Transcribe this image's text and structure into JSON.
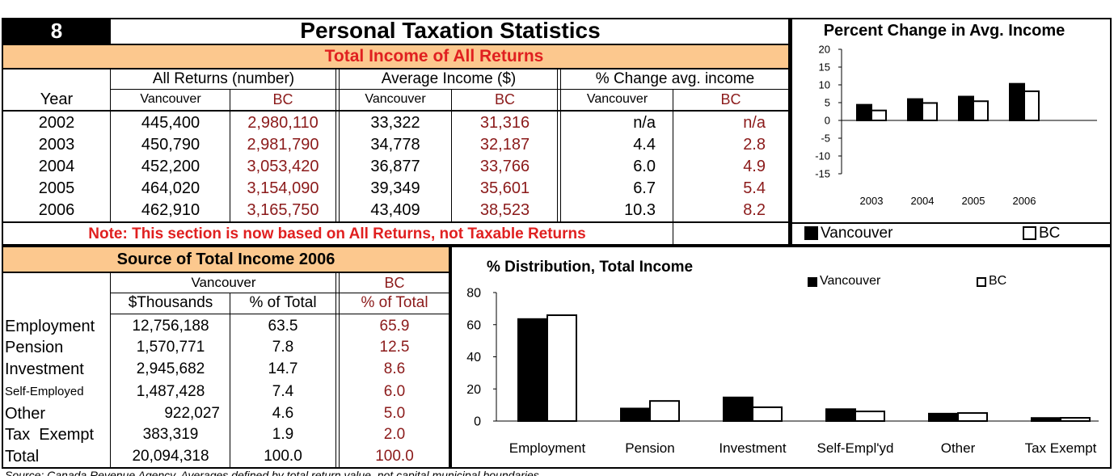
{
  "header": {
    "number": "8",
    "title": "Personal Taxation Statistics",
    "subtitle": "Total Income of All Returns"
  },
  "returns_table": {
    "year_label": "Year",
    "groups": [
      "All Returns (number)",
      "Average Income ($)",
      "% Change avg. income"
    ],
    "sub_labels": [
      "Vancouver",
      "BC"
    ],
    "rows": [
      {
        "year": "2002",
        "all_van": "445,400",
        "all_bc": "2,980,110",
        "avg_van": "33,322",
        "avg_bc": "31,316",
        "chg_van": "n/a",
        "chg_bc": "n/a"
      },
      {
        "year": "2003",
        "all_van": "450,790",
        "all_bc": "2,981,790",
        "avg_van": "34,778",
        "avg_bc": "32,187",
        "chg_van": "4.4",
        "chg_bc": "2.8"
      },
      {
        "year": "2004",
        "all_van": "452,200",
        "all_bc": "3,053,420",
        "avg_van": "36,877",
        "avg_bc": "33,766",
        "chg_van": "6.0",
        "chg_bc": "4.9"
      },
      {
        "year": "2005",
        "all_van": "464,020",
        "all_bc": "3,154,090",
        "avg_van": "39,349",
        "avg_bc": "35,601",
        "chg_van": "6.7",
        "chg_bc": "5.4"
      },
      {
        "year": "2006",
        "all_van": "462,910",
        "all_bc": "3,165,750",
        "avg_van": "43,409",
        "avg_bc": "38,523",
        "chg_van": "10.3",
        "chg_bc": "8.2"
      }
    ],
    "note": "Note: This section is now based on All Returns, not Taxable Returns"
  },
  "source_table": {
    "title": "Source of Total Income 2006",
    "van_label": "Vancouver",
    "bc_label": "BC",
    "col_thousands": "$Thousands",
    "col_pct": "% of Total",
    "col_bc_pct": "% of Total",
    "rows": [
      {
        "label": "Employment",
        "thousands": "12,756,188",
        "pct": "63.5",
        "bc": "65.9"
      },
      {
        "label": "Pension",
        "thousands": "1,570,771",
        "pct": "7.8",
        "bc": "12.5"
      },
      {
        "label": "Investment",
        "thousands": "2,945,682",
        "pct": "14.7",
        "bc": "8.6"
      },
      {
        "label": "Self-Employed",
        "thousands": "1,487,428",
        "pct": "7.4",
        "bc": "6.0"
      },
      {
        "label": "Other",
        "thousands": "922,027",
        "pct": "4.6",
        "bc": "5.0"
      },
      {
        "label": "Tax  Exempt",
        "thousands": "383,319",
        "pct": "1.9",
        "bc": "2.0"
      },
      {
        "label": "Total",
        "thousands": "20,094,318",
        "pct": "100.0",
        "bc": "100.0"
      }
    ]
  },
  "footer": {
    "source": "Source: Canada Revenue Agency.  Averages defined by total return value, not capital municipal boundaries."
  },
  "colors": {
    "bc_red": "#8b1a1a",
    "note_red": "#e02020",
    "header_orange": "#fcc88e",
    "black": "#000000"
  },
  "chart_data": [
    {
      "type": "bar",
      "title": "Percent Change in Avg. Income",
      "categories": [
        "2003",
        "2004",
        "2005",
        "2006"
      ],
      "series": [
        {
          "name": "Vancouver",
          "values": [
            4.4,
            6.0,
            6.7,
            10.3
          ],
          "color": "#000000"
        },
        {
          "name": "BC",
          "values": [
            2.8,
            4.9,
            5.4,
            8.2
          ],
          "color": "#ffffff"
        }
      ],
      "ylim": [
        -15,
        20
      ],
      "yticks": [
        "20",
        "15",
        "10",
        "5",
        "0",
        "-5",
        "-10",
        "-15"
      ],
      "legend_position": "bottom",
      "grid": false
    },
    {
      "type": "bar",
      "title": "% Distribution, Total Income",
      "categories": [
        "Employment",
        "Pension",
        "Investment",
        "Self-Empl'yd",
        "Other",
        "Tax Exempt"
      ],
      "series": [
        {
          "name": "Vancouver",
          "values": [
            63.5,
            7.8,
            14.7,
            7.4,
            4.6,
            1.9
          ],
          "color": "#000000"
        },
        {
          "name": "BC",
          "values": [
            65.9,
            12.5,
            8.6,
            6.0,
            5.0,
            2.0
          ],
          "color": "#ffffff"
        }
      ],
      "ylim": [
        0,
        80
      ],
      "yticks": [
        "80",
        "60",
        "40",
        "20",
        "0"
      ],
      "legend_position": "top-right",
      "grid": false
    }
  ]
}
